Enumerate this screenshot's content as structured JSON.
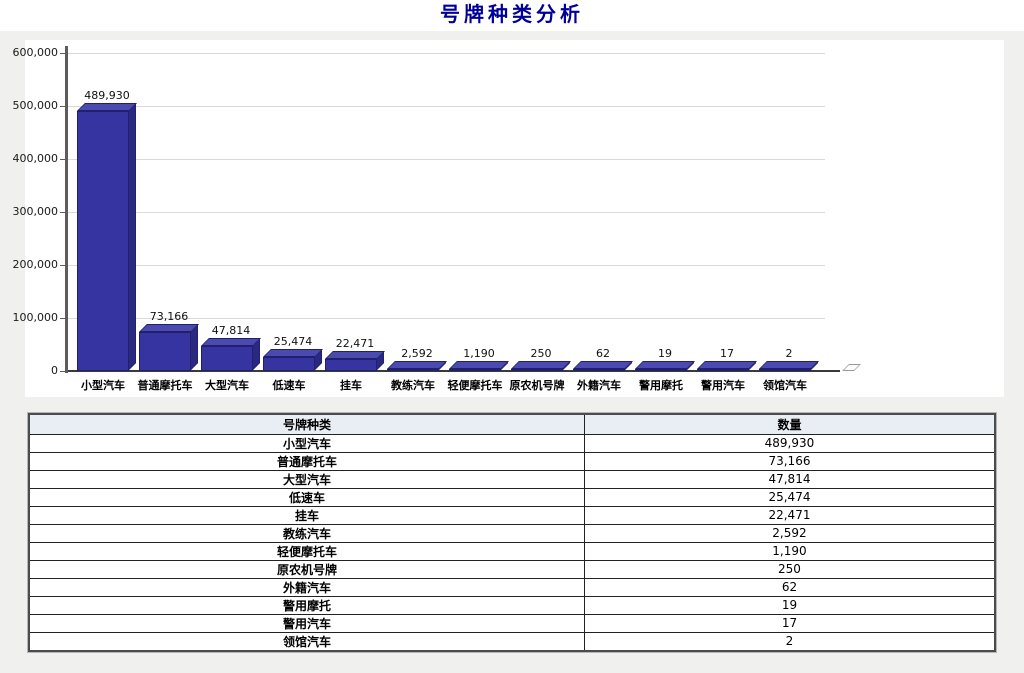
{
  "page": {
    "title": "号牌种类分析"
  },
  "colors": {
    "title_text": "#000099",
    "bar_front": "#3534a0",
    "bar_top": "#4b4aae",
    "bar_side": "#29297f",
    "table_header_bg": "#e9edf4",
    "gridline": "#d9d9d9"
  },
  "chart_data": {
    "type": "bar",
    "title": "号牌种类分析",
    "xlabel": "",
    "ylabel": "",
    "ylim": [
      0,
      600000
    ],
    "grid": true,
    "legend": "none",
    "y_ticks": [
      "0",
      "100,000",
      "200,000",
      "300,000",
      "400,000",
      "500,000",
      "600,000"
    ],
    "categories": [
      "小型汽车",
      "普通摩托车",
      "大型汽车",
      "低速车",
      "挂车",
      "教练汽车",
      "轻便摩托车",
      "原农机号牌",
      "外籍汽车",
      "警用摩托",
      "警用汽车",
      "领馆汽车"
    ],
    "values": [
      489930,
      73166,
      47814,
      25474,
      22471,
      2592,
      1190,
      250,
      62,
      19,
      17,
      2
    ],
    "value_labels": [
      "489,930",
      "73,166",
      "47,814",
      "25,474",
      "22,471",
      "2,592",
      "1,190",
      "250",
      "62",
      "19",
      "17",
      "2"
    ]
  },
  "table": {
    "headers": [
      "号牌种类",
      "数量"
    ],
    "rows": [
      [
        "小型汽车",
        "489,930"
      ],
      [
        "普通摩托车",
        "73,166"
      ],
      [
        "大型汽车",
        "47,814"
      ],
      [
        "低速车",
        "25,474"
      ],
      [
        "挂车",
        "22,471"
      ],
      [
        "教练汽车",
        "2,592"
      ],
      [
        "轻便摩托车",
        "1,190"
      ],
      [
        "原农机号牌",
        "250"
      ],
      [
        "外籍汽车",
        "62"
      ],
      [
        "警用摩托",
        "19"
      ],
      [
        "警用汽车",
        "17"
      ],
      [
        "领馆汽车",
        "2"
      ]
    ]
  }
}
